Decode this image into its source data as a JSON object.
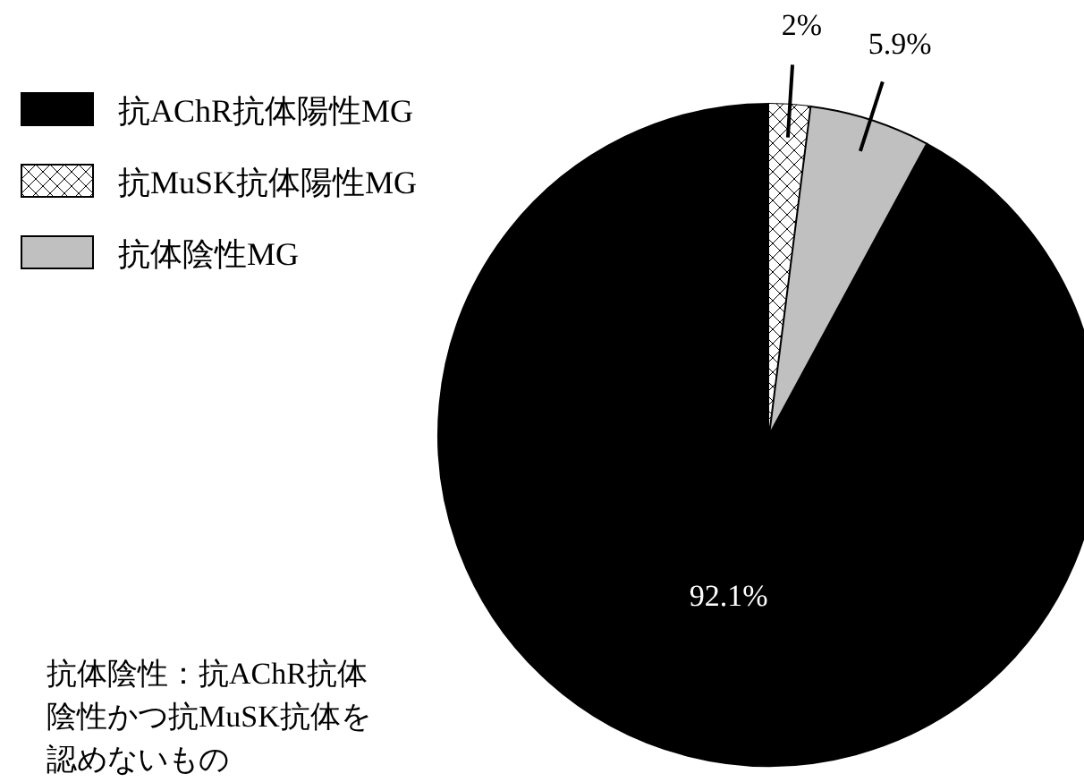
{
  "chart_data": {
    "type": "pie",
    "categories": [
      "抗AChR抗体陽性MG",
      "抗MuSK抗体陽性MG",
      "抗体陰性MG"
    ],
    "values": [
      92.1,
      2,
      5.9
    ],
    "colors": [
      "#000000",
      "#ffffff",
      "#c0c0c0"
    ],
    "value_labels": [
      "92.1%",
      "2%",
      "5.9%"
    ],
    "legend": "top left",
    "annotations": [
      "抗体陰性：抗AChR抗体",
      "陰性かつ抗MuSK抗体を",
      "認めないもの"
    ]
  }
}
